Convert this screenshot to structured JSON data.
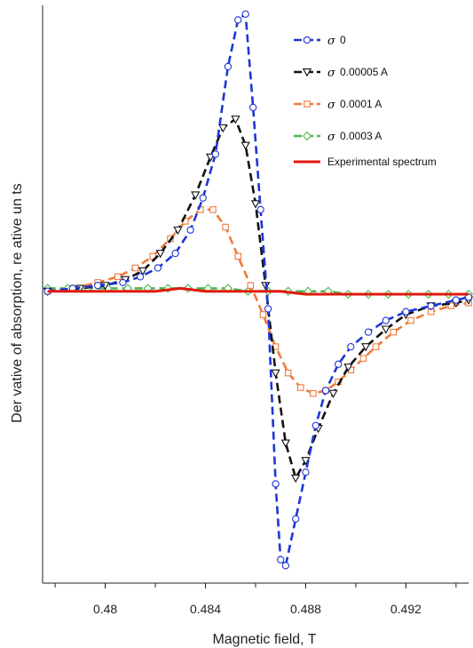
{
  "chart_data": {
    "type": "line",
    "xlabel": "Magnetic field, T",
    "ylabel": "Der vative of absorption, re ative un ts",
    "xlim": [
      0.4775,
      0.4945
    ],
    "ylim": [
      -1.0,
      0.98
    ],
    "xticks": [
      0.48,
      0.484,
      0.488,
      0.492
    ],
    "xtick_labels": [
      "0.48",
      "0.484",
      "0.488",
      "0.492"
    ],
    "legend_position": "top-right",
    "series": [
      {
        "name": "0",
        "legend_sigma": "σ",
        "color": "#1f36d6",
        "marker": "circle",
        "line": "dashed",
        "points": [
          [
            0.4777,
            0.0
          ],
          [
            0.4787,
            0.01
          ],
          [
            0.4797,
            0.02
          ],
          [
            0.4807,
            0.03
          ],
          [
            0.4814,
            0.05
          ],
          [
            0.4821,
            0.08
          ],
          [
            0.4828,
            0.13
          ],
          [
            0.4834,
            0.21
          ],
          [
            0.4839,
            0.32
          ],
          [
            0.4844,
            0.47
          ],
          [
            0.4849,
            0.77
          ],
          [
            0.4853,
            0.93
          ],
          [
            0.4856,
            0.95
          ],
          [
            0.4859,
            0.63
          ],
          [
            0.4862,
            0.28
          ],
          [
            0.4865,
            -0.06
          ],
          [
            0.4868,
            -0.66
          ],
          [
            0.487,
            -0.92
          ],
          [
            0.4872,
            -0.94
          ],
          [
            0.4876,
            -0.78
          ],
          [
            0.488,
            -0.62
          ],
          [
            0.4884,
            -0.46
          ],
          [
            0.4888,
            -0.34
          ],
          [
            0.4893,
            -0.25
          ],
          [
            0.4898,
            -0.19
          ],
          [
            0.4905,
            -0.14
          ],
          [
            0.4912,
            -0.1
          ],
          [
            0.492,
            -0.07
          ],
          [
            0.493,
            -0.05
          ],
          [
            0.494,
            -0.03
          ],
          [
            0.4945,
            -0.02
          ]
        ]
      },
      {
        "name": "0.00005 A",
        "legend_sigma": "σ",
        "color": "#111111",
        "marker": "triangle-down",
        "line": "dashed",
        "points": [
          [
            0.4777,
            0.0
          ],
          [
            0.479,
            0.01
          ],
          [
            0.48,
            0.02
          ],
          [
            0.4808,
            0.04
          ],
          [
            0.4815,
            0.07
          ],
          [
            0.4822,
            0.13
          ],
          [
            0.4829,
            0.21
          ],
          [
            0.4836,
            0.33
          ],
          [
            0.4842,
            0.46
          ],
          [
            0.4847,
            0.56
          ],
          [
            0.4852,
            0.59
          ],
          [
            0.4856,
            0.5
          ],
          [
            0.486,
            0.3
          ],
          [
            0.4864,
            0.02
          ],
          [
            0.4868,
            -0.28
          ],
          [
            0.4872,
            -0.52
          ],
          [
            0.4876,
            -0.64
          ],
          [
            0.488,
            -0.58
          ],
          [
            0.4885,
            -0.47
          ],
          [
            0.4891,
            -0.35
          ],
          [
            0.4897,
            -0.26
          ],
          [
            0.4904,
            -0.19
          ],
          [
            0.4912,
            -0.13
          ],
          [
            0.492,
            -0.08
          ],
          [
            0.493,
            -0.05
          ],
          [
            0.494,
            -0.04
          ],
          [
            0.4945,
            -0.03
          ]
        ]
      },
      {
        "name": "0.0001 A",
        "legend_sigma": "σ",
        "color": "#ee7a3c",
        "marker": "square",
        "line": "dashed",
        "points": [
          [
            0.4777,
            0.0
          ],
          [
            0.4787,
            0.01
          ],
          [
            0.4797,
            0.03
          ],
          [
            0.4805,
            0.05
          ],
          [
            0.4812,
            0.08
          ],
          [
            0.4819,
            0.12
          ],
          [
            0.4826,
            0.18
          ],
          [
            0.4832,
            0.24
          ],
          [
            0.4838,
            0.28
          ],
          [
            0.4843,
            0.28
          ],
          [
            0.4848,
            0.22
          ],
          [
            0.4853,
            0.12
          ],
          [
            0.4858,
            0.02
          ],
          [
            0.4863,
            -0.08
          ],
          [
            0.4868,
            -0.19
          ],
          [
            0.4873,
            -0.28
          ],
          [
            0.4878,
            -0.33
          ],
          [
            0.4883,
            -0.35
          ],
          [
            0.4888,
            -0.34
          ],
          [
            0.4893,
            -0.31
          ],
          [
            0.4898,
            -0.27
          ],
          [
            0.4903,
            -0.23
          ],
          [
            0.4908,
            -0.19
          ],
          [
            0.4915,
            -0.14
          ],
          [
            0.4922,
            -0.1
          ],
          [
            0.493,
            -0.07
          ],
          [
            0.4938,
            -0.05
          ],
          [
            0.4945,
            -0.04
          ]
        ]
      },
      {
        "name": "0.0003 A",
        "legend_sigma": "σ",
        "color": "#4cb84c",
        "marker": "diamond",
        "line": "dashed",
        "points": [
          [
            0.4777,
            0.01
          ],
          [
            0.4785,
            0.01
          ],
          [
            0.4793,
            0.01
          ],
          [
            0.4801,
            0.01
          ],
          [
            0.4809,
            0.01
          ],
          [
            0.4817,
            0.01
          ],
          [
            0.4825,
            0.01
          ],
          [
            0.4833,
            0.01
          ],
          [
            0.4841,
            0.01
          ],
          [
            0.4849,
            0.01
          ],
          [
            0.4857,
            0.0
          ],
          [
            0.4865,
            0.0
          ],
          [
            0.4873,
            0.0
          ],
          [
            0.4881,
            0.0
          ],
          [
            0.4889,
            0.0
          ],
          [
            0.4897,
            -0.01
          ],
          [
            0.4905,
            -0.01
          ],
          [
            0.4913,
            -0.01
          ],
          [
            0.4921,
            -0.01
          ],
          [
            0.4929,
            -0.01
          ],
          [
            0.4937,
            -0.01
          ],
          [
            0.4945,
            -0.01
          ]
        ]
      },
      {
        "name": "Experimental spectrum",
        "color": "#e0190f",
        "marker": "none",
        "line": "solid",
        "points": [
          [
            0.4777,
            0.0
          ],
          [
            0.479,
            0.0
          ],
          [
            0.48,
            0.0
          ],
          [
            0.481,
            0.0
          ],
          [
            0.482,
            0.0
          ],
          [
            0.483,
            0.01
          ],
          [
            0.484,
            0.0
          ],
          [
            0.485,
            0.0
          ],
          [
            0.486,
            0.0
          ],
          [
            0.487,
            0.0
          ],
          [
            0.488,
            -0.01
          ],
          [
            0.489,
            -0.01
          ],
          [
            0.49,
            -0.01
          ],
          [
            0.491,
            -0.01
          ],
          [
            0.492,
            -0.01
          ],
          [
            0.493,
            -0.01
          ],
          [
            0.4945,
            -0.01
          ]
        ]
      }
    ]
  }
}
